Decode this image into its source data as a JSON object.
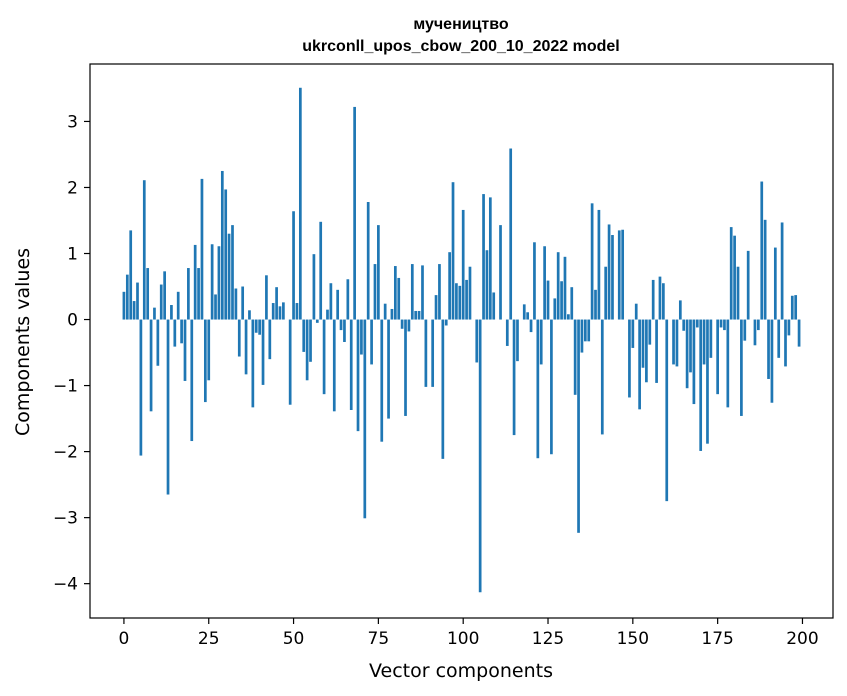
{
  "chart_data": {
    "type": "bar",
    "title_line1": "мучеництво",
    "title_line2": "ukrconll_upos_cbow_200_10_2022 model",
    "xlabel": "Vector components",
    "ylabel": "Components values",
    "xlim": [
      -10,
      209
    ],
    "ylim": [
      -4.52,
      3.87
    ],
    "xticks": [
      0,
      25,
      50,
      75,
      100,
      125,
      150,
      175,
      200
    ],
    "xtick_labels": [
      "0",
      "25",
      "50",
      "75",
      "100",
      "125",
      "150",
      "175",
      "200"
    ],
    "yticks": [
      -4,
      -3,
      -2,
      -1,
      0,
      1,
      2,
      3
    ],
    "ytick_labels": [
      "−4",
      "−3",
      "−2",
      "−1",
      "0",
      "1",
      "2",
      "3"
    ],
    "bar_color": "#1f77b4",
    "values": [
      0.42,
      0.68,
      1.35,
      0.28,
      0.56,
      -2.06,
      2.11,
      0.78,
      -1.39,
      0.18,
      -0.7,
      0.53,
      0.73,
      -2.65,
      0.22,
      -0.41,
      0.42,
      -0.36,
      -0.93,
      0.78,
      -1.84,
      1.13,
      0.78,
      2.13,
      -1.25,
      -0.92,
      1.14,
      0.38,
      1.11,
      2.25,
      1.97,
      1.3,
      1.43,
      0.47,
      -0.56,
      0.5,
      -0.83,
      0.14,
      -1.33,
      -0.2,
      -0.23,
      -0.99,
      0.67,
      -0.6,
      0.25,
      0.49,
      0.2,
      0.26,
      0.0,
      -1.29,
      1.64,
      0.25,
      3.51,
      -0.49,
      -0.92,
      -0.64,
      0.99,
      -0.05,
      1.48,
      -1.13,
      0.15,
      0.55,
      -1.39,
      0.45,
      -0.16,
      -0.34,
      0.61,
      -1.37,
      3.22,
      -1.69,
      -0.53,
      -3.01,
      1.78,
      -0.68,
      0.84,
      1.43,
      -1.85,
      0.24,
      -1.5,
      0.16,
      0.81,
      0.63,
      -0.14,
      -1.46,
      -0.18,
      0.84,
      0.13,
      0.13,
      0.82,
      -1.02,
      0.0,
      -1.02,
      0.37,
      0.84,
      -2.11,
      -0.09,
      1.02,
      2.08,
      0.55,
      0.51,
      1.66,
      0.6,
      0.8,
      0.0,
      -0.65,
      -4.13,
      1.9,
      1.05,
      1.85,
      0.41,
      0.0,
      1.43,
      0.0,
      -0.4,
      2.59,
      -1.75,
      -0.63,
      0.0,
      0.23,
      0.11,
      -0.19,
      1.17,
      -2.1,
      -0.68,
      1.11,
      0.59,
      -2.04,
      0.32,
      1.02,
      0.58,
      0.95,
      0.08,
      0.49,
      -1.14,
      -3.23,
      -0.5,
      -0.33,
      -0.33,
      1.76,
      0.45,
      1.66,
      -1.74,
      0.8,
      1.44,
      1.28,
      0.0,
      1.35,
      1.36,
      0.0,
      -1.18,
      -0.43,
      0.24,
      -1.36,
      -0.73,
      -0.95,
      -0.38,
      0.6,
      -0.96,
      0.65,
      0.55,
      -2.75,
      0.0,
      -0.68,
      -0.71,
      0.29,
      -0.17,
      -1.04,
      -0.8,
      -1.28,
      -0.12,
      -1.99,
      -0.68,
      -1.88,
      -0.58,
      0.0,
      -1.13,
      -0.12,
      -0.16,
      -1.33,
      1.4,
      1.27,
      0.8,
      -1.46,
      -0.32,
      1.04,
      0.0,
      -0.39,
      -0.16,
      2.09,
      1.51,
      -0.9,
      -1.26,
      1.09,
      -0.58,
      1.47,
      -0.71,
      -0.24,
      0.36,
      0.37,
      -0.41
    ]
  }
}
